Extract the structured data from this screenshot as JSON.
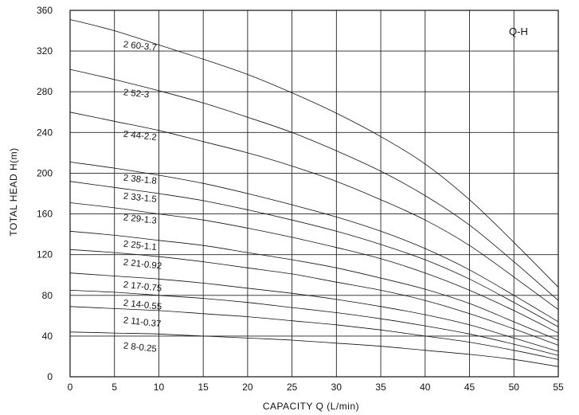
{
  "chart_data": {
    "type": "line",
    "title": "",
    "corner_label": "Q-H",
    "xlabel": "CAPACITY  Q (L/min)",
    "ylabel": "TOTAL HEAD  H(m)",
    "xlim": [
      0,
      55
    ],
    "ylim": [
      0,
      360
    ],
    "x_ticks": [
      0,
      5,
      10,
      15,
      20,
      25,
      30,
      35,
      40,
      45,
      50,
      55
    ],
    "y_ticks": [
      0,
      40,
      80,
      120,
      160,
      200,
      240,
      280,
      320,
      360
    ],
    "grid": true,
    "x": [
      0,
      5,
      10,
      15,
      20,
      25,
      30,
      35,
      40,
      45,
      50,
      55
    ],
    "series": [
      {
        "name": "2 60-3.7",
        "label_at": [
          6,
          327
        ],
        "values": [
          351,
          340,
          326,
          312,
          297,
          279,
          259,
          236,
          209,
          174,
          132,
          88
        ]
      },
      {
        "name": "2 52-3",
        "label_at": [
          6,
          280
        ],
        "values": [
          302,
          292,
          281,
          269,
          255,
          240,
          222,
          202,
          178,
          149,
          113,
          75
        ]
      },
      {
        "name": "2 44-2.2",
        "label_at": [
          6,
          239
        ],
        "values": [
          260,
          251,
          242,
          231,
          220,
          207,
          192,
          174,
          154,
          129,
          98,
          66
        ]
      },
      {
        "name": "2 38-1.8",
        "label_at": [
          6,
          196
        ],
        "values": [
          211,
          205,
          198,
          190,
          180,
          169,
          157,
          143,
          126,
          105,
          80,
          54
        ]
      },
      {
        "name": "2 33-1.5",
        "label_at": [
          6,
          178
        ],
        "values": [
          192,
          186,
          180,
          173,
          164,
          154,
          143,
          130,
          115,
          96,
          73,
          49
        ]
      },
      {
        "name": "2 29-1.3",
        "label_at": [
          6,
          157
        ],
        "values": [
          171,
          166,
          160,
          154,
          146,
          137,
          127,
          116,
          102,
          85,
          65,
          43
        ]
      },
      {
        "name": "2 25-1.1",
        "label_at": [
          6,
          131
        ],
        "values": [
          143,
          139,
          134,
          129,
          122,
          115,
          107,
          97,
          86,
          72,
          54,
          36
        ]
      },
      {
        "name": "2 21-0.92",
        "label_at": [
          6,
          113
        ],
        "values": [
          125,
          122,
          118,
          113,
          107,
          101,
          93,
          85,
          75,
          62,
          47,
          31
        ]
      },
      {
        "name": "2 17-0.75",
        "label_at": [
          6,
          91
        ],
        "values": [
          102,
          99,
          96,
          92,
          87,
          82,
          76,
          69,
          61,
          51,
          38,
          25
        ]
      },
      {
        "name": "2 14-0.55",
        "label_at": [
          6,
          73
        ],
        "values": [
          85,
          83,
          80,
          77,
          73,
          68,
          63,
          57,
          50,
          42,
          32,
          21
        ]
      },
      {
        "name": "2 11-0.37",
        "label_at": [
          6,
          56
        ],
        "values": [
          69,
          67,
          65,
          62,
          59,
          55,
          51,
          46,
          40,
          34,
          26,
          17
        ]
      },
      {
        "name": "2 8-0.25",
        "label_at": [
          6,
          31
        ],
        "values": [
          44,
          43,
          42,
          40,
          38,
          36,
          33,
          30,
          26,
          22,
          17,
          10
        ]
      }
    ]
  }
}
